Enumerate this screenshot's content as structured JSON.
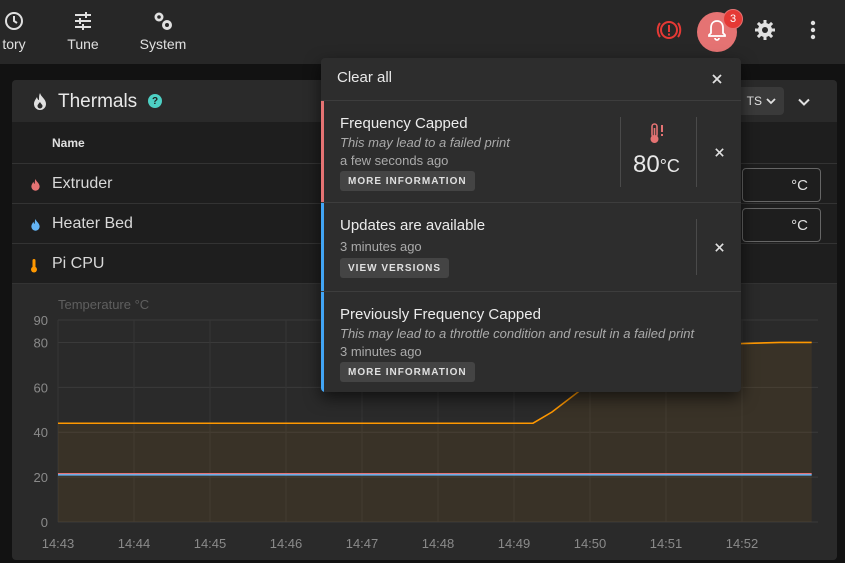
{
  "nav": {
    "history_label": "tory",
    "tune_label": "Tune",
    "system_label": "System"
  },
  "notifications_badge": "3",
  "thermals": {
    "title": "Thermals",
    "presets_label": "TS",
    "name_header": "Name",
    "rows": [
      {
        "name": "Extruder",
        "unit": "°C",
        "color": "#e57373"
      },
      {
        "name": "Heater Bed",
        "unit": "°C",
        "color": "#64b5f6"
      },
      {
        "name": "Pi CPU",
        "color": "#ff9800"
      }
    ]
  },
  "popup": {
    "clear_all": "Clear all",
    "items": [
      {
        "title": "Frequency Capped",
        "description": "This may lead to a failed print",
        "time": "a few seconds ago",
        "button": "MORE INFORMATION",
        "temp_value": "80",
        "temp_unit": "°C",
        "color": "#e57373"
      },
      {
        "title": "Updates are available",
        "time": "3 minutes ago",
        "button": "VIEW VERSIONS",
        "color": "#42a5f5"
      },
      {
        "title": "Previously Frequency Capped",
        "description": "This may lead to a throttle condition and result in a failed print",
        "time": "3 minutes ago",
        "button": "MORE INFORMATION",
        "color": "#42a5f5"
      }
    ]
  },
  "chart_data": {
    "type": "line",
    "ylabel": "Temperature °C",
    "ylim": [
      0,
      90
    ],
    "yticks": [
      0,
      20,
      40,
      60,
      80,
      90
    ],
    "xlim": [
      "14:43",
      "14:53"
    ],
    "xticks": [
      "14:43",
      "14:44",
      "14:45",
      "14:46",
      "14:47",
      "14:48",
      "14:49",
      "14:50",
      "14:51",
      "14:52"
    ],
    "series": [
      {
        "color": "#ff9800",
        "fill": true,
        "points": [
          [
            "14:43",
            44
          ],
          [
            "14:49:15",
            44
          ],
          [
            "14:49:30",
            49
          ],
          [
            "14:50",
            62
          ],
          [
            "14:50:30",
            74
          ],
          [
            "14:51",
            78
          ],
          [
            "14:51:30",
            79
          ],
          [
            "14:52",
            79.5
          ],
          [
            "14:52:30",
            80
          ],
          [
            "14:52:55",
            80
          ]
        ]
      },
      {
        "color": "#e57373",
        "fill": false,
        "points": [
          [
            "14:43",
            21.5
          ],
          [
            "14:52:55",
            21.5
          ]
        ]
      },
      {
        "color": "#64b5f6",
        "fill": false,
        "points": [
          [
            "14:43",
            21
          ],
          [
            "14:52:55",
            21
          ]
        ]
      }
    ]
  }
}
